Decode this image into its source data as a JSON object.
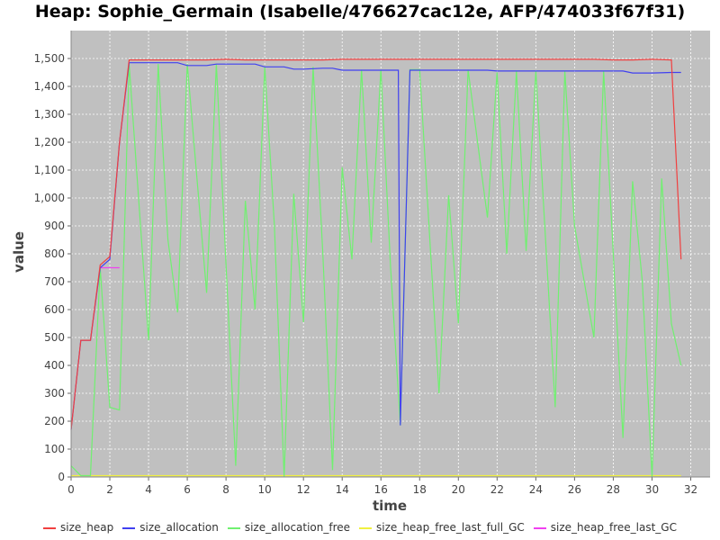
{
  "chart_data": {
    "type": "line",
    "title": "Heap: Sophie_Germain (Isabelle/476627cac12e, AFP/474033f67f31)",
    "xlabel": "time",
    "ylabel": "value",
    "xlim": [
      0,
      33
    ],
    "ylim": [
      0,
      1600
    ],
    "x_ticks": [
      0,
      2,
      4,
      6,
      8,
      10,
      12,
      14,
      16,
      18,
      20,
      22,
      24,
      26,
      28,
      30,
      32
    ],
    "y_ticks": [
      0,
      100,
      200,
      300,
      400,
      500,
      600,
      700,
      800,
      900,
      1000,
      1100,
      1200,
      1300,
      1400,
      1500
    ],
    "y_tick_labels": [
      "0",
      "100",
      "200",
      "300",
      "400",
      "500",
      "600",
      "700",
      "800",
      "900",
      "1,000",
      "1,100",
      "1,200",
      "1,300",
      "1,400",
      "1,500"
    ],
    "grid": true,
    "legend_position": "bottom",
    "background": "#c0c0c0",
    "series": [
      {
        "name": "size_heap",
        "color": "#f04040",
        "x": [
          0,
          0.5,
          1,
          1.5,
          2,
          2.5,
          3,
          4,
          5,
          6,
          7,
          8,
          9,
          10,
          11,
          12,
          13,
          14,
          15,
          16,
          17,
          18,
          19,
          20,
          21,
          22,
          23,
          24,
          25,
          26,
          27,
          28,
          29,
          30,
          31,
          31.5
        ],
        "y": [
          170,
          490,
          490,
          760,
          790,
          1200,
          1495,
          1495,
          1495,
          1495,
          1495,
          1497,
          1495,
          1495,
          1495,
          1495,
          1495,
          1497,
          1497,
          1497,
          1497,
          1497,
          1497,
          1497,
          1497,
          1497,
          1497,
          1497,
          1497,
          1497,
          1497,
          1495,
          1495,
          1497,
          1495,
          780
        ]
      },
      {
        "name": "size_allocation",
        "color": "#4040f0",
        "x": [
          0,
          0.5,
          1,
          1.5,
          2,
          2.5,
          3,
          4,
          5,
          5.5,
          6,
          7,
          7.5,
          8,
          9,
          9.5,
          10,
          11,
          11.5,
          12,
          13,
          13.5,
          14,
          15,
          16,
          16.9,
          17,
          17.5,
          18,
          19,
          20,
          21,
          21.5,
          22,
          23,
          24,
          25,
          26,
          27,
          28,
          28.5,
          29,
          30,
          31,
          31.5
        ],
        "y": [
          170,
          490,
          490,
          750,
          780,
          1200,
          1485,
          1485,
          1485,
          1485,
          1475,
          1475,
          1480,
          1480,
          1480,
          1480,
          1470,
          1470,
          1462,
          1462,
          1465,
          1465,
          1458,
          1458,
          1458,
          1458,
          185,
          1458,
          1458,
          1458,
          1458,
          1458,
          1458,
          1455,
          1455,
          1455,
          1455,
          1455,
          1455,
          1455,
          1455,
          1448,
          1448,
          1450,
          1450
        ]
      },
      {
        "name": "size_allocation_free",
        "color": "#70f070",
        "x": [
          0,
          0.5,
          1,
          1.5,
          2,
          2.5,
          3,
          4,
          4.5,
          5,
          5.5,
          6,
          7,
          7.5,
          8.5,
          9,
          9.5,
          10,
          10.5,
          11,
          11.5,
          12,
          12.5,
          13,
          13.5,
          14,
          14.5,
          15,
          15.5,
          16,
          16.5,
          17,
          17.5,
          18,
          19,
          19.5,
          20,
          20.5,
          21.5,
          22,
          22.5,
          23,
          23.5,
          24,
          25,
          25.5,
          26,
          27,
          27.5,
          28.5,
          29,
          29.5,
          30,
          30.5,
          31,
          31.5
        ],
        "y": [
          40,
          5,
          5,
          750,
          250,
          240,
          1480,
          490,
          1480,
          850,
          590,
          1480,
          660,
          1480,
          40,
          990,
          600,
          1470,
          900,
          0,
          1015,
          555,
          1470,
          800,
          25,
          1110,
          780,
          1460,
          840,
          1460,
          750,
          185,
          1460,
          1460,
          300,
          1010,
          550,
          1460,
          930,
          1450,
          800,
          1455,
          810,
          1455,
          250,
          1455,
          900,
          500,
          1455,
          140,
          1060,
          700,
          0,
          1070,
          550,
          400
        ]
      },
      {
        "name": "size_heap_free_last_full_GC",
        "color": "#f0f040",
        "x": [
          0,
          31.5
        ],
        "y": [
          5,
          5
        ]
      },
      {
        "name": "size_heap_free_last_GC",
        "color": "#f040f0",
        "x": [
          1.5,
          2,
          2.5
        ],
        "y": [
          750,
          750,
          750
        ]
      }
    ]
  }
}
